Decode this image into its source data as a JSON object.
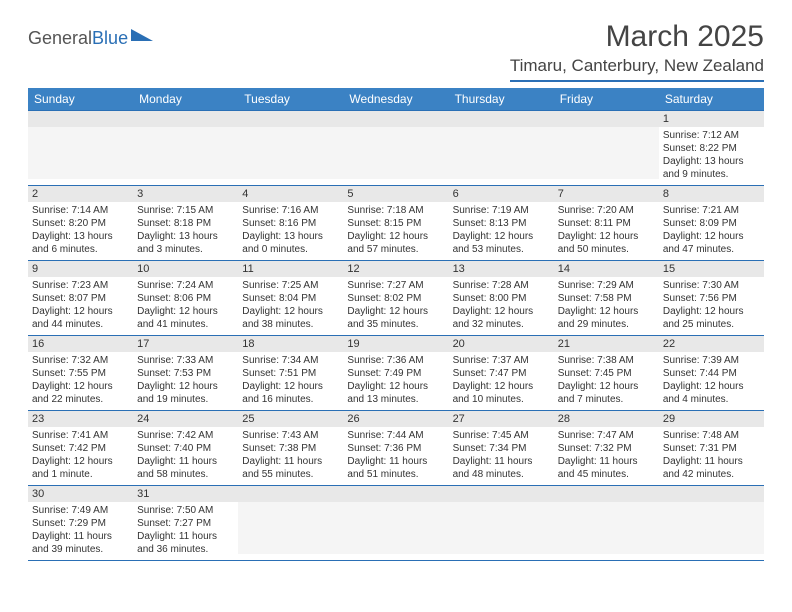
{
  "logo": {
    "general": "General",
    "blue": "Blue"
  },
  "title": "March 2025",
  "location": "Timaru, Canterbury, New Zealand",
  "colors": {
    "header_bg": "#3b82c4",
    "border": "#2a6fb5",
    "day_num_bg": "#e8e8e8",
    "empty_bg": "#f5f5f5"
  },
  "day_names": [
    "Sunday",
    "Monday",
    "Tuesday",
    "Wednesday",
    "Thursday",
    "Friday",
    "Saturday"
  ],
  "weeks": [
    [
      {
        "n": "",
        "empty": true
      },
      {
        "n": "",
        "empty": true
      },
      {
        "n": "",
        "empty": true
      },
      {
        "n": "",
        "empty": true
      },
      {
        "n": "",
        "empty": true
      },
      {
        "n": "",
        "empty": true
      },
      {
        "n": "1",
        "sr": "7:12 AM",
        "ss": "8:22 PM",
        "dl": "13 hours and 9 minutes."
      }
    ],
    [
      {
        "n": "2",
        "sr": "7:14 AM",
        "ss": "8:20 PM",
        "dl": "13 hours and 6 minutes."
      },
      {
        "n": "3",
        "sr": "7:15 AM",
        "ss": "8:18 PM",
        "dl": "13 hours and 3 minutes."
      },
      {
        "n": "4",
        "sr": "7:16 AM",
        "ss": "8:16 PM",
        "dl": "13 hours and 0 minutes."
      },
      {
        "n": "5",
        "sr": "7:18 AM",
        "ss": "8:15 PM",
        "dl": "12 hours and 57 minutes."
      },
      {
        "n": "6",
        "sr": "7:19 AM",
        "ss": "8:13 PM",
        "dl": "12 hours and 53 minutes."
      },
      {
        "n": "7",
        "sr": "7:20 AM",
        "ss": "8:11 PM",
        "dl": "12 hours and 50 minutes."
      },
      {
        "n": "8",
        "sr": "7:21 AM",
        "ss": "8:09 PM",
        "dl": "12 hours and 47 minutes."
      }
    ],
    [
      {
        "n": "9",
        "sr": "7:23 AM",
        "ss": "8:07 PM",
        "dl": "12 hours and 44 minutes."
      },
      {
        "n": "10",
        "sr": "7:24 AM",
        "ss": "8:06 PM",
        "dl": "12 hours and 41 minutes."
      },
      {
        "n": "11",
        "sr": "7:25 AM",
        "ss": "8:04 PM",
        "dl": "12 hours and 38 minutes."
      },
      {
        "n": "12",
        "sr": "7:27 AM",
        "ss": "8:02 PM",
        "dl": "12 hours and 35 minutes."
      },
      {
        "n": "13",
        "sr": "7:28 AM",
        "ss": "8:00 PM",
        "dl": "12 hours and 32 minutes."
      },
      {
        "n": "14",
        "sr": "7:29 AM",
        "ss": "7:58 PM",
        "dl": "12 hours and 29 minutes."
      },
      {
        "n": "15",
        "sr": "7:30 AM",
        "ss": "7:56 PM",
        "dl": "12 hours and 25 minutes."
      }
    ],
    [
      {
        "n": "16",
        "sr": "7:32 AM",
        "ss": "7:55 PM",
        "dl": "12 hours and 22 minutes."
      },
      {
        "n": "17",
        "sr": "7:33 AM",
        "ss": "7:53 PM",
        "dl": "12 hours and 19 minutes."
      },
      {
        "n": "18",
        "sr": "7:34 AM",
        "ss": "7:51 PM",
        "dl": "12 hours and 16 minutes."
      },
      {
        "n": "19",
        "sr": "7:36 AM",
        "ss": "7:49 PM",
        "dl": "12 hours and 13 minutes."
      },
      {
        "n": "20",
        "sr": "7:37 AM",
        "ss": "7:47 PM",
        "dl": "12 hours and 10 minutes."
      },
      {
        "n": "21",
        "sr": "7:38 AM",
        "ss": "7:45 PM",
        "dl": "12 hours and 7 minutes."
      },
      {
        "n": "22",
        "sr": "7:39 AM",
        "ss": "7:44 PM",
        "dl": "12 hours and 4 minutes."
      }
    ],
    [
      {
        "n": "23",
        "sr": "7:41 AM",
        "ss": "7:42 PM",
        "dl": "12 hours and 1 minute."
      },
      {
        "n": "24",
        "sr": "7:42 AM",
        "ss": "7:40 PM",
        "dl": "11 hours and 58 minutes."
      },
      {
        "n": "25",
        "sr": "7:43 AM",
        "ss": "7:38 PM",
        "dl": "11 hours and 55 minutes."
      },
      {
        "n": "26",
        "sr": "7:44 AM",
        "ss": "7:36 PM",
        "dl": "11 hours and 51 minutes."
      },
      {
        "n": "27",
        "sr": "7:45 AM",
        "ss": "7:34 PM",
        "dl": "11 hours and 48 minutes."
      },
      {
        "n": "28",
        "sr": "7:47 AM",
        "ss": "7:32 PM",
        "dl": "11 hours and 45 minutes."
      },
      {
        "n": "29",
        "sr": "7:48 AM",
        "ss": "7:31 PM",
        "dl": "11 hours and 42 minutes."
      }
    ],
    [
      {
        "n": "30",
        "sr": "7:49 AM",
        "ss": "7:29 PM",
        "dl": "11 hours and 39 minutes."
      },
      {
        "n": "31",
        "sr": "7:50 AM",
        "ss": "7:27 PM",
        "dl": "11 hours and 36 minutes."
      },
      {
        "n": "",
        "empty": true
      },
      {
        "n": "",
        "empty": true
      },
      {
        "n": "",
        "empty": true
      },
      {
        "n": "",
        "empty": true
      },
      {
        "n": "",
        "empty": true
      }
    ]
  ],
  "labels": {
    "sunrise": "Sunrise:",
    "sunset": "Sunset:",
    "daylight": "Daylight:"
  }
}
